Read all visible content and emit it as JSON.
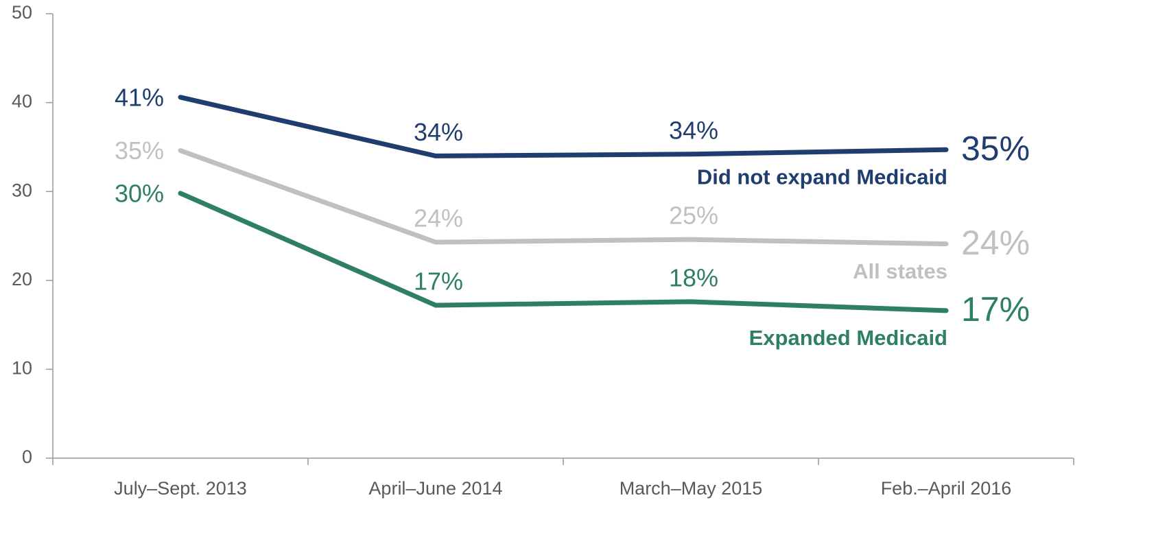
{
  "chart_data": {
    "type": "line",
    "categories": [
      "July–Sept. 2013",
      "April–June 2014",
      "March–May 2015",
      "Feb.–April 2016"
    ],
    "series": [
      {
        "name": "Did not expand Medicaid",
        "color": "#1f3d6e",
        "values": [
          40.6,
          34.0,
          34.2,
          34.7
        ],
        "value_labels": [
          "41%",
          "34%",
          "34%",
          "35%"
        ]
      },
      {
        "name": "All states",
        "color": "#c0c0c0",
        "values": [
          34.6,
          24.3,
          24.6,
          24.1
        ],
        "value_labels": [
          "35%",
          "24%",
          "25%",
          "24%"
        ]
      },
      {
        "name": "Expanded Medicaid",
        "color": "#2e8060",
        "values": [
          29.8,
          17.2,
          17.6,
          16.6
        ],
        "value_labels": [
          "30%",
          "17%",
          "18%",
          "17%"
        ]
      }
    ],
    "ylim": [
      0,
      50
    ],
    "yticks": [
      0,
      10,
      20,
      30,
      40,
      50
    ]
  }
}
